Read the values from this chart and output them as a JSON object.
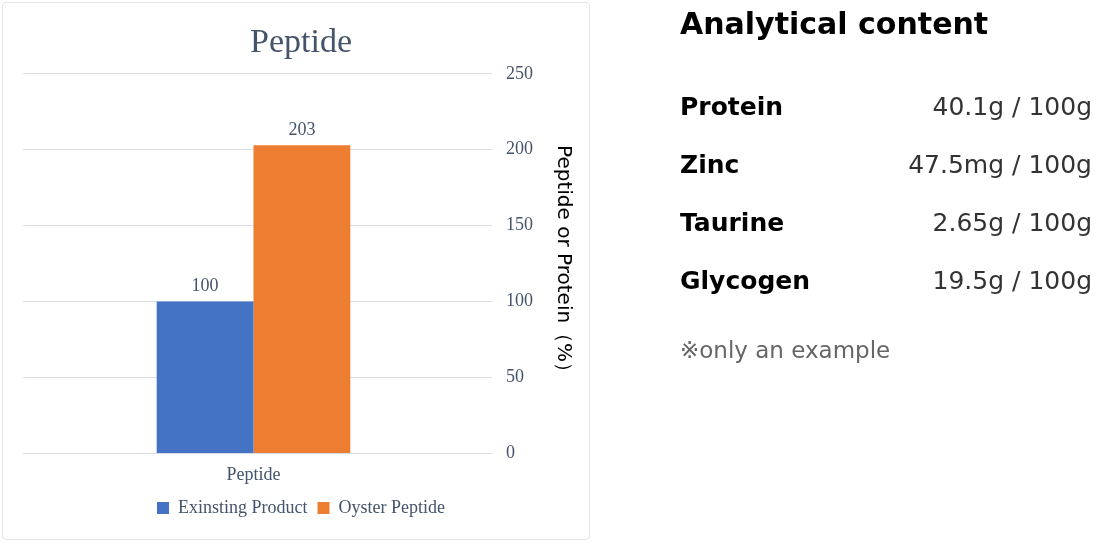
{
  "chart_data": [
    {
      "type": "bar",
      "title": "Peptide",
      "ylabel": "Peptide or Protein（%）",
      "categories": [
        "Peptide"
      ],
      "series": [
        {
          "name": "Exinsting Product",
          "color": "#4472c4",
          "values": [
            100
          ]
        },
        {
          "name": "Oyster Peptide",
          "color": "#ed7d31",
          "values": [
            203
          ]
        }
      ],
      "ylim": [
        0,
        250
      ],
      "yticks": [
        0,
        50,
        100,
        150,
        200,
        250
      ],
      "grid": "y",
      "legend": "bottom",
      "data_labels": true
    },
    {
      "type": "other",
      "title": "Analytical content",
      "annotations": [
        "Protein",
        "40.1g / 100g",
        "Zinc",
        "47.5mg / 100g",
        "Taurine",
        "2.65g / 100g",
        "Glycogen",
        "19.5g / 100g",
        "※only an example"
      ]
    }
  ]
}
